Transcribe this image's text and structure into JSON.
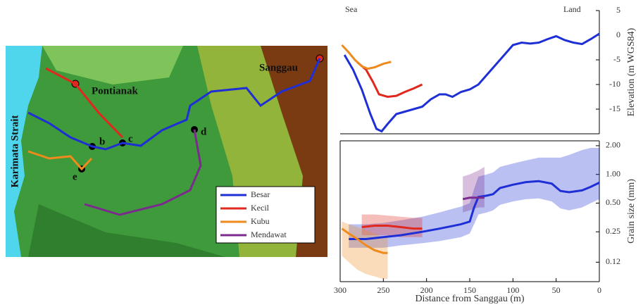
{
  "map": {
    "labels": {
      "strait": "Karimata Strait",
      "city1": "Pontianak",
      "city2": "Sanggau",
      "b": "b",
      "c": "c",
      "d": "d",
      "e": "e"
    }
  },
  "chart_data": [
    {
      "type": "line",
      "annotations": {
        "left": "Sea",
        "right": "Land"
      },
      "y_label": "Elevation (m WGS84)",
      "xlim": [
        300,
        0
      ],
      "ylim": [
        -20,
        5
      ],
      "yticks": [
        -15,
        -10,
        -5,
        0,
        5
      ],
      "series": [
        {
          "name": "Besar",
          "color": "#1f2fd6",
          "x": [
            295,
            285,
            275,
            265,
            258,
            252,
            245,
            235,
            225,
            215,
            205,
            195,
            185,
            178,
            170,
            160,
            150,
            140,
            130,
            120,
            110,
            100,
            90,
            80,
            70,
            60,
            50,
            40,
            30,
            20,
            10,
            0
          ],
          "values": [
            -4,
            -7,
            -11,
            -16,
            -19,
            -19.5,
            -18,
            -16,
            -15.5,
            -15,
            -14.5,
            -13,
            -12,
            -12,
            -12.5,
            -11.5,
            -11,
            -10,
            -8,
            -6,
            -4,
            -2,
            -1.5,
            -1.7,
            -1.5,
            -0.8,
            -0.2,
            -1,
            -1.5,
            -1.8,
            -0.8,
            0.3
          ]
        },
        {
          "name": "Kecil",
          "color": "#e0281e",
          "x": [
            280,
            270,
            262,
            255,
            245,
            235,
            225,
            215,
            205
          ],
          "values": [
            -5.5,
            -7,
            -9.5,
            -12,
            -12.5,
            -12.3,
            -11.5,
            -10.8,
            -10
          ]
        },
        {
          "name": "Kubu",
          "color": "#ef8a1c",
          "x": [
            298,
            290,
            283,
            275,
            268,
            260,
            250,
            241
          ],
          "values": [
            -2,
            -3.5,
            -5,
            -6.3,
            -6.8,
            -6.5,
            -5.8,
            -5.4
          ]
        }
      ]
    },
    {
      "type": "line",
      "log_scale": true,
      "x_label": "Distance from Sanggau (m)",
      "y_label": "Grain size (mm)",
      "xlim": [
        300,
        0
      ],
      "xticks": [
        300,
        250,
        200,
        150,
        100,
        50,
        0
      ],
      "ylim": [
        0.075,
        2.25
      ],
      "yticks": [
        0.12,
        0.25,
        {
          "value": 0.5,
          "label": "0.50"
        },
        {
          "value": 1,
          "label": "1.00"
        },
        {
          "value": 2,
          "label": "2.00"
        }
      ],
      "series": [
        {
          "name": "Besar",
          "color": "#1f2fd6",
          "x": [
            290,
            270,
            250,
            230,
            205,
            185,
            160,
            150,
            145,
            140,
            130,
            123,
            115,
            100,
            85,
            70,
            55,
            45,
            35,
            20,
            10,
            0
          ],
          "values": [
            0.21,
            0.21,
            0.22,
            0.23,
            0.25,
            0.27,
            0.3,
            0.32,
            0.45,
            0.58,
            0.6,
            0.62,
            0.72,
            0.78,
            0.83,
            0.85,
            0.8,
            0.67,
            0.65,
            0.68,
            0.74,
            0.82
          ],
          "lower": [
            0.17,
            0.17,
            0.17,
            0.18,
            0.19,
            0.2,
            0.22,
            0.24,
            0.3,
            0.38,
            0.4,
            0.42,
            0.48,
            0.52,
            0.55,
            0.56,
            0.52,
            0.44,
            0.42,
            0.45,
            0.5,
            0.55
          ],
          "upper": [
            0.3,
            0.3,
            0.31,
            0.33,
            0.36,
            0.4,
            0.46,
            0.5,
            0.7,
            0.95,
            1,
            1.05,
            1.2,
            1.3,
            1.4,
            1.5,
            1.5,
            1.5,
            1.6,
            1.8,
            1.9,
            1.9
          ]
        },
        {
          "name": "Kecil",
          "color": "#e0281e",
          "x": [
            275,
            260,
            245,
            230,
            215,
            205
          ],
          "values": [
            0.28,
            0.29,
            0.29,
            0.28,
            0.27,
            0.27
          ],
          "lower": [
            0.23,
            0.23,
            0.23,
            0.22,
            0.22,
            0.22
          ],
          "upper": [
            0.38,
            0.38,
            0.37,
            0.36,
            0.35,
            0.35
          ]
        },
        {
          "name": "Kubu",
          "color": "#ef8a1c",
          "x": [
            298,
            290,
            280,
            270,
            260,
            250,
            245
          ],
          "values": [
            0.27,
            0.24,
            0.21,
            0.18,
            0.16,
            0.15,
            0.15
          ],
          "lower": [
            0.14,
            0.12,
            0.1,
            0.09,
            0.085,
            0.08,
            0.08
          ],
          "upper": [
            0.32,
            0.3,
            0.28,
            0.26,
            0.24,
            0.22,
            0.22
          ]
        },
        {
          "name": "Mendawat",
          "color": "#7b2a8e",
          "x": [
            158,
            150,
            140,
            133
          ],
          "values": [
            0.55,
            0.57,
            0.57,
            0.57
          ],
          "lower": [
            0.4,
            0.42,
            0.45,
            0.45
          ],
          "upper": [
            0.95,
            1,
            1.1,
            1.2
          ]
        }
      ]
    }
  ]
}
